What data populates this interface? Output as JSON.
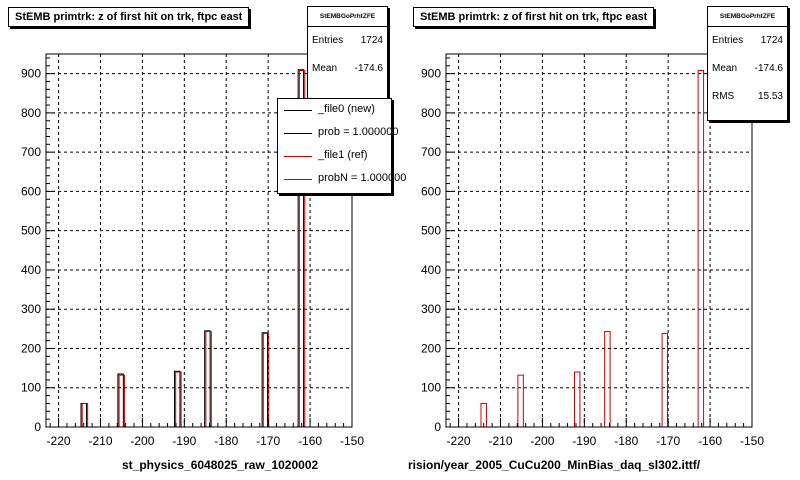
{
  "colors": {
    "new": "#000000",
    "ref": "#cc0000",
    "frame": "#000000",
    "grid": "#000000"
  },
  "left_panel": {
    "title": "StEMB primtrk: z of first hit on trk, ftpc east",
    "stats": {
      "header": "StEMBGoPrhtZFE",
      "entries_label": "Entries",
      "entries_value": "1724",
      "mean_label": "Mean",
      "mean_value": "-174.6"
    },
    "legend": [
      {
        "label": "_file0 (new)",
        "color": "#000000"
      },
      {
        "label": "prob = 1.000000",
        "color": "#000000"
      },
      {
        "label": "_file1 (ref)",
        "color": "#cc0000"
      },
      {
        "label": "probN = 1.000000",
        "color": "#cc0000"
      }
    ],
    "footer": "st_physics_6048025_raw_1020002"
  },
  "right_panel": {
    "title": "StEMB primtrk: z of first hit on trk, ftpc east",
    "stats": {
      "header": "StEMBGoPrhtZFE",
      "entries_label": "Entries",
      "entries_value": "1724",
      "mean_label": "Mean",
      "mean_value": "-174.6",
      "rms_label": "RMS",
      "rms_value": "15.53"
    },
    "footer": "rision/year_2005_CuCu200_MinBias_daq_sl302.ittf/"
  },
  "corner_text": "",
  "chart_data": [
    {
      "type": "bar",
      "title": "StEMB primtrk: z of first hit on trk, ftpc east",
      "xlabel": "st_physics_6048025_raw_1020002",
      "ylabel": "",
      "xlim": [
        -223,
        -150
      ],
      "ylim": [
        0,
        950
      ],
      "xticks": [
        -220,
        -210,
        -200,
        -190,
        -180,
        -170,
        -160,
        -150
      ],
      "yticks": [
        0,
        100,
        200,
        300,
        400,
        500,
        600,
        700,
        800,
        900
      ],
      "grid": true,
      "legend_position": "top-right",
      "bin_width": 1.3,
      "series": [
        {
          "name": "_file0 (new)",
          "x": [
            -214,
            -205.2,
            -191.7,
            -184.5,
            -170.8,
            -162.2
          ],
          "values": [
            60,
            135,
            142,
            245,
            240,
            910
          ]
        },
        {
          "name": "_file1 (ref)",
          "x": [
            -214,
            -205.2,
            -191.7,
            -184.5,
            -170.8,
            -162.2
          ],
          "values": [
            60,
            132,
            140,
            243,
            238,
            908
          ]
        }
      ]
    },
    {
      "type": "bar",
      "title": "StEMB primtrk: z of first hit on trk, ftpc east",
      "xlabel": "rision/year_2005_CuCu200_MinBias_daq_sl302.ittf/",
      "ylabel": "",
      "xlim": [
        -223,
        -150
      ],
      "ylim": [
        0,
        950
      ],
      "xticks": [
        -220,
        -210,
        -200,
        -190,
        -180,
        -170,
        -160,
        -150
      ],
      "yticks": [
        0,
        100,
        200,
        300,
        400,
        500,
        600,
        700,
        800,
        900
      ],
      "grid": true,
      "bin_width": 1.3,
      "series": [
        {
          "name": "",
          "x": [
            -214,
            -205.2,
            -191.7,
            -184.5,
            -170.8,
            -162.2
          ],
          "values": [
            60,
            132,
            140,
            243,
            238,
            908
          ]
        }
      ]
    }
  ]
}
